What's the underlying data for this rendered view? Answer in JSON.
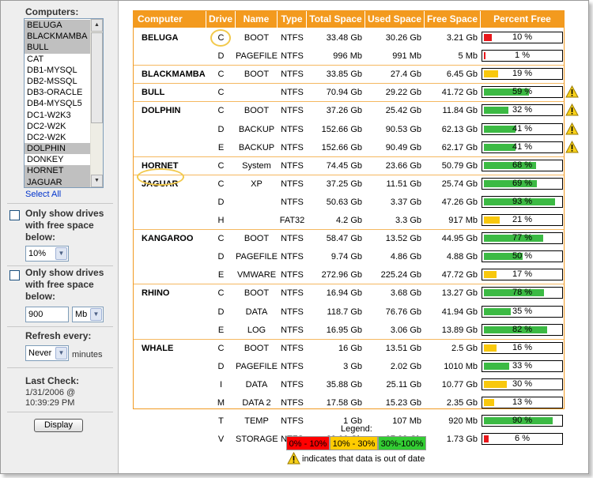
{
  "sidebar": {
    "computers_heading": "Computers:",
    "computers": [
      {
        "name": "BELUGA",
        "selected": true
      },
      {
        "name": "BLACKMAMBA",
        "selected": true
      },
      {
        "name": "BULL",
        "selected": true
      },
      {
        "name": "CAT",
        "selected": false
      },
      {
        "name": "DB1-MYSQL",
        "selected": false
      },
      {
        "name": "DB2-MSSQL",
        "selected": false
      },
      {
        "name": "DB3-ORACLE",
        "selected": false
      },
      {
        "name": "DB4-MYSQL5",
        "selected": false
      },
      {
        "name": "DC1-W2K3",
        "selected": false
      },
      {
        "name": "DC2-W2K",
        "selected": false
      },
      {
        "name": "DC2-W2K",
        "selected": false
      },
      {
        "name": "DOLPHIN",
        "selected": true
      },
      {
        "name": "DONKEY",
        "selected": false
      },
      {
        "name": "HORNET",
        "selected": true
      },
      {
        "name": "JAGUAR",
        "selected": true
      }
    ],
    "select_all": "Select All",
    "filter_percent": {
      "label": "Only show drives with free space below:",
      "value": "10%",
      "checked": false
    },
    "filter_size": {
      "label": "Only show drives with free space below:",
      "value": "900",
      "unit": "Mb",
      "checked": false
    },
    "refresh": {
      "label": "Refresh every:",
      "value": "Never",
      "suffix": "minutes"
    },
    "last_check": {
      "label": "Last Check:",
      "date": "1/31/2006 @",
      "time": "10:39:29 PM"
    },
    "display_button": "Display"
  },
  "table": {
    "headers": [
      "Computer",
      "Drive",
      "Name",
      "Type",
      "Total Space",
      "Used Space",
      "Free Space",
      "Percent Free"
    ],
    "groups": [
      {
        "computer": "BELUGA",
        "drives": [
          {
            "drive": "C",
            "name": "BOOT",
            "type": "NTFS",
            "total": "33.48 Gb",
            "used": "30.26 Gb",
            "free": "3.21 Gb",
            "pct": 10,
            "pct_label": "10 %",
            "color": "#e8171b",
            "warn": false
          },
          {
            "drive": "D",
            "name": "PAGEFILE",
            "type": "NTFS",
            "total": "996 Mb",
            "used": "991 Mb",
            "free": "5 Mb",
            "pct": 1,
            "pct_label": "1 %",
            "color": "#e8171b",
            "warn": false
          }
        ]
      },
      {
        "computer": "BLACKMAMBA",
        "drives": [
          {
            "drive": "C",
            "name": "BOOT",
            "type": "NTFS",
            "total": "33.85 Gb",
            "used": "27.4 Gb",
            "free": "6.45 Gb",
            "pct": 19,
            "pct_label": "19 %",
            "color": "#f8c80d",
            "warn": false
          }
        ]
      },
      {
        "computer": "BULL",
        "drives": [
          {
            "drive": "C",
            "name": "",
            "type": "NTFS",
            "total": "70.94 Gb",
            "used": "29.22 Gb",
            "free": "41.72 Gb",
            "pct": 59,
            "pct_label": "59 %",
            "color": "#3cba44",
            "warn": true
          }
        ]
      },
      {
        "computer": "DOLPHIN",
        "drives": [
          {
            "drive": "C",
            "name": "BOOT",
            "type": "NTFS",
            "total": "37.26 Gb",
            "used": "25.42 Gb",
            "free": "11.84 Gb",
            "pct": 32,
            "pct_label": "32 %",
            "color": "#3cba44",
            "warn": true
          },
          {
            "drive": "D",
            "name": "BACKUP",
            "type": "NTFS",
            "total": "152.66 Gb",
            "used": "90.53 Gb",
            "free": "62.13 Gb",
            "pct": 41,
            "pct_label": "41 %",
            "color": "#3cba44",
            "warn": true
          },
          {
            "drive": "E",
            "name": "BACKUP",
            "type": "NTFS",
            "total": "152.66 Gb",
            "used": "90.49 Gb",
            "free": "62.17 Gb",
            "pct": 41,
            "pct_label": "41 %",
            "color": "#3cba44",
            "warn": true
          }
        ]
      },
      {
        "computer": "HORNET",
        "drives": [
          {
            "drive": "C",
            "name": "System",
            "type": "NTFS",
            "total": "74.45 Gb",
            "used": "23.66 Gb",
            "free": "50.79 Gb",
            "pct": 68,
            "pct_label": "68 %",
            "color": "#3cba44",
            "warn": false
          }
        ]
      },
      {
        "computer": "JAGUAR",
        "drives": [
          {
            "drive": "C",
            "name": "XP",
            "type": "NTFS",
            "total": "37.25 Gb",
            "used": "11.51 Gb",
            "free": "25.74 Gb",
            "pct": 69,
            "pct_label": "69 %",
            "color": "#3cba44",
            "warn": false
          },
          {
            "drive": "D",
            "name": "",
            "type": "NTFS",
            "total": "50.63 Gb",
            "used": "3.37 Gb",
            "free": "47.26 Gb",
            "pct": 93,
            "pct_label": "93 %",
            "color": "#3cba44",
            "warn": false
          },
          {
            "drive": "H",
            "name": "",
            "type": "FAT32",
            "total": "4.2 Gb",
            "used": "3.3 Gb",
            "free": "917 Mb",
            "pct": 21,
            "pct_label": "21 %",
            "color": "#f8c80d",
            "warn": false
          }
        ]
      },
      {
        "computer": "KANGAROO",
        "drives": [
          {
            "drive": "C",
            "name": "BOOT",
            "type": "NTFS",
            "total": "58.47 Gb",
            "used": "13.52 Gb",
            "free": "44.95 Gb",
            "pct": 77,
            "pct_label": "77 %",
            "color": "#3cba44",
            "warn": false
          },
          {
            "drive": "D",
            "name": "PAGEFILE",
            "type": "NTFS",
            "total": "9.74 Gb",
            "used": "4.86 Gb",
            "free": "4.88 Gb",
            "pct": 50,
            "pct_label": "50 %",
            "color": "#3cba44",
            "warn": false
          },
          {
            "drive": "E",
            "name": "VMWARE",
            "type": "NTFS",
            "total": "272.96 Gb",
            "used": "225.24 Gb",
            "free": "47.72 Gb",
            "pct": 17,
            "pct_label": "17 %",
            "color": "#f8c80d",
            "warn": false
          }
        ]
      },
      {
        "computer": "RHINO",
        "drives": [
          {
            "drive": "C",
            "name": "BOOT",
            "type": "NTFS",
            "total": "16.94 Gb",
            "used": "3.68 Gb",
            "free": "13.27 Gb",
            "pct": 78,
            "pct_label": "78 %",
            "color": "#3cba44",
            "warn": false
          },
          {
            "drive": "D",
            "name": "DATA",
            "type": "NTFS",
            "total": "118.7 Gb",
            "used": "76.76 Gb",
            "free": "41.94 Gb",
            "pct": 35,
            "pct_label": "35 %",
            "color": "#3cba44",
            "warn": false
          },
          {
            "drive": "E",
            "name": "LOG",
            "type": "NTFS",
            "total": "16.95 Gb",
            "used": "3.06 Gb",
            "free": "13.89 Gb",
            "pct": 82,
            "pct_label": "82 %",
            "color": "#3cba44",
            "warn": false
          }
        ]
      },
      {
        "computer": "WHALE",
        "drives": [
          {
            "drive": "C",
            "name": "BOOT",
            "type": "NTFS",
            "total": "16 Gb",
            "used": "13.51 Gb",
            "free": "2.5 Gb",
            "pct": 16,
            "pct_label": "16 %",
            "color": "#f8c80d",
            "warn": false
          },
          {
            "drive": "D",
            "name": "PAGEFILE",
            "type": "NTFS",
            "total": "3 Gb",
            "used": "2.02 Gb",
            "free": "1010 Mb",
            "pct": 33,
            "pct_label": "33 %",
            "color": "#3cba44",
            "warn": false
          },
          {
            "drive": "I",
            "name": "DATA",
            "type": "NTFS",
            "total": "35.88 Gb",
            "used": "25.11 Gb",
            "free": "10.77 Gb",
            "pct": 30,
            "pct_label": "30 %",
            "color": "#f8c80d",
            "warn": false
          },
          {
            "drive": "M",
            "name": "DATA 2",
            "type": "NTFS",
            "total": "17.58 Gb",
            "used": "15.23 Gb",
            "free": "2.35 Gb",
            "pct": 13,
            "pct_label": "13 %",
            "color": "#f8c80d",
            "warn": false
          },
          {
            "drive": "T",
            "name": "TEMP",
            "type": "NTFS",
            "total": "1 Gb",
            "used": "107 Mb",
            "free": "920 Mb",
            "pct": 90,
            "pct_label": "90 %",
            "color": "#3cba44",
            "warn": false
          },
          {
            "drive": "V",
            "name": "STORAGE",
            "type": "NTFS",
            "total": "29.06 Gb",
            "used": "27.33 Gb",
            "free": "1.73 Gb",
            "pct": 6,
            "pct_label": "6 %",
            "color": "#e8171b",
            "warn": false
          }
        ]
      }
    ]
  },
  "legend": {
    "title": "Legend:",
    "items": [
      {
        "label": "0% - 10%",
        "color": "#ff0000"
      },
      {
        "label": "10% - 30%",
        "color": "#ffcc00"
      },
      {
        "label": "30%-100%",
        "color": "#33cc33"
      }
    ],
    "warning_note": "indicates that data is out of date"
  }
}
